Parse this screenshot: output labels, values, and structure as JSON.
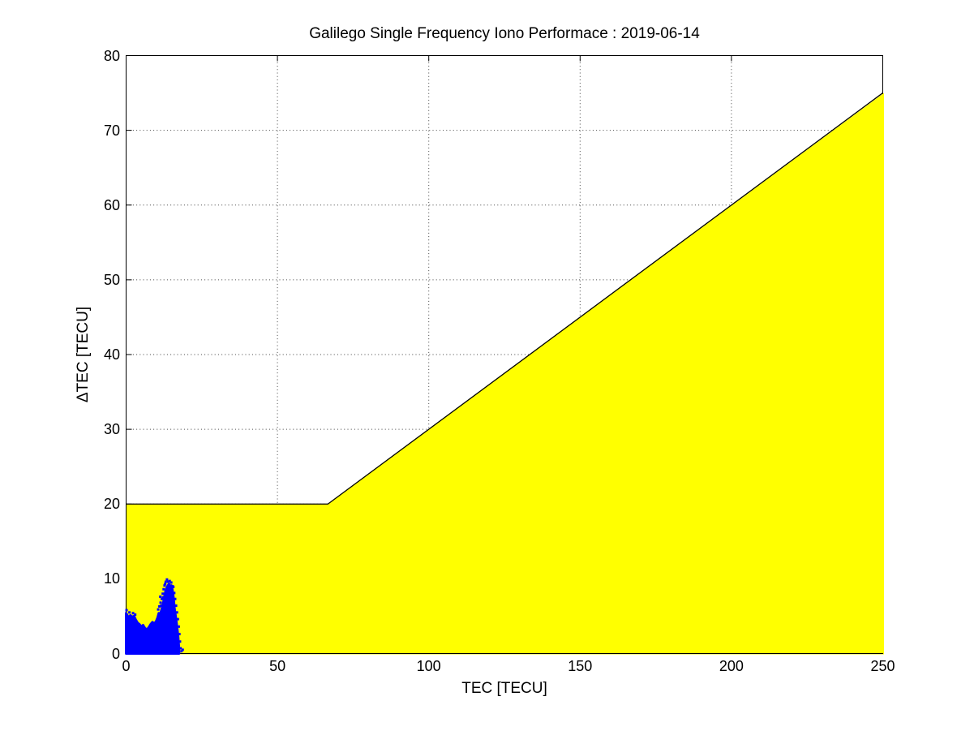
{
  "chart_data": {
    "type": "scatter",
    "title": "Galilego Single Frequency Iono Performace : 2019-06-14",
    "xlabel": "TEC [TECU]",
    "ylabel": "ΔTEC [TECU]",
    "xlim": [
      0,
      250
    ],
    "ylim": [
      0,
      80
    ],
    "xticks": [
      0,
      50,
      100,
      150,
      200,
      250
    ],
    "yticks": [
      0,
      10,
      20,
      30,
      40,
      50,
      60,
      70,
      80
    ],
    "grid": {
      "on": true,
      "style": "dotted",
      "color": "#000000"
    },
    "box": true,
    "background": "#ffffff",
    "spec_region": {
      "fill_color": "#ffff00",
      "edge_color": "#000000",
      "boundary_points": [
        [
          0,
          20
        ],
        [
          66.67,
          20
        ],
        [
          250,
          75
        ]
      ],
      "fills_down_to_y": 0
    },
    "series": [
      {
        "marker": "square",
        "marker_color": "#0000ff",
        "marker_size_px": 3,
        "cluster_outline": [
          [
            0,
            0
          ],
          [
            0,
            5.4
          ],
          [
            0.4,
            5.1
          ],
          [
            0.9,
            4.8
          ],
          [
            1.4,
            5.1
          ],
          [
            2.0,
            4.9
          ],
          [
            2.6,
            5.0
          ],
          [
            3.2,
            4.5
          ],
          [
            3.8,
            4.1
          ],
          [
            4.4,
            3.9
          ],
          [
            5.0,
            3.6
          ],
          [
            5.6,
            3.8
          ],
          [
            6.2,
            3.4
          ],
          [
            6.9,
            3.2
          ],
          [
            7.5,
            3.5
          ],
          [
            8.1,
            3.9
          ],
          [
            8.7,
            4.2
          ],
          [
            9.3,
            4.0
          ],
          [
            9.9,
            4.3
          ],
          [
            10.4,
            4.8
          ],
          [
            10.8,
            5.4
          ],
          [
            11.2,
            5.1
          ],
          [
            11.6,
            5.7
          ],
          [
            12.0,
            6.3
          ],
          [
            12.4,
            7.0
          ],
          [
            12.7,
            7.7
          ],
          [
            13.0,
            8.3
          ],
          [
            13.4,
            8.8
          ],
          [
            13.8,
            9.1
          ],
          [
            14.2,
            9.3
          ],
          [
            14.6,
            9.0
          ],
          [
            15.0,
            9.1
          ],
          [
            15.3,
            8.5
          ],
          [
            15.6,
            7.7
          ],
          [
            15.8,
            6.9
          ],
          [
            16.0,
            6.0
          ],
          [
            16.3,
            5.2
          ],
          [
            16.6,
            4.3
          ],
          [
            16.9,
            3.3
          ],
          [
            17.2,
            2.2
          ],
          [
            17.4,
            1.1
          ],
          [
            17.5,
            0
          ]
        ],
        "points": [
          [
            0.15,
            5.8
          ],
          [
            1.1,
            5.5
          ],
          [
            2.3,
            5.4
          ],
          [
            3.0,
            5.2
          ],
          [
            10.6,
            5.9
          ],
          [
            11.0,
            6.3
          ],
          [
            11.3,
            7.6
          ],
          [
            11.4,
            6.8
          ],
          [
            11.6,
            6.4
          ],
          [
            11.8,
            7.3
          ],
          [
            12.1,
            8.0
          ],
          [
            12.2,
            7.5
          ],
          [
            12.4,
            8.6
          ],
          [
            12.7,
            9.1
          ],
          [
            12.9,
            9.3
          ],
          [
            13.1,
            9.6
          ],
          [
            13.5,
            9.9
          ],
          [
            13.9,
            9.6
          ],
          [
            14.4,
            9.7
          ],
          [
            14.9,
            9.5
          ],
          [
            15.4,
            9.0
          ],
          [
            15.6,
            8.9
          ],
          [
            15.9,
            8.1
          ],
          [
            16.2,
            7.3
          ],
          [
            16.5,
            6.4
          ],
          [
            16.8,
            5.5
          ],
          [
            17.1,
            4.6
          ],
          [
            17.4,
            3.6
          ],
          [
            17.6,
            2.6
          ],
          [
            17.8,
            1.6
          ],
          [
            18.0,
            0.7
          ],
          [
            18.3,
            0.3
          ],
          [
            18.7,
            0.5
          ]
        ]
      }
    ]
  }
}
